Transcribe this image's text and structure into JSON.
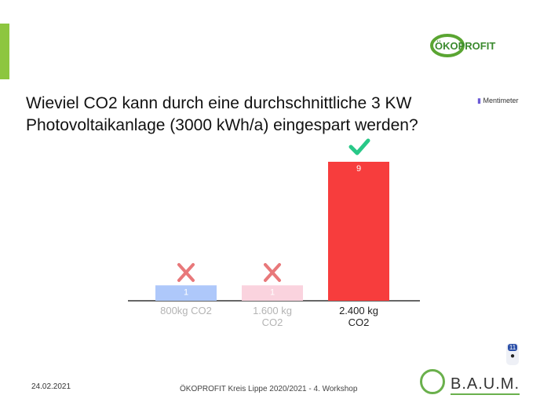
{
  "slide": {
    "logo_top": "ÖKOPROFIT",
    "brand": "Mentimeter",
    "logo_bottom": "B.A.U.M.",
    "badge": "11",
    "date": "24.02.2021",
    "footer": "ÖKOPROFIT Kreis Lippe 2020/2021 - 4. Workshop"
  },
  "chart_data": {
    "type": "bar",
    "title": "Wieviel CO2 kann durch eine durchschnittliche 3 KW Photovoltaikanlage (3000 kWh/a) eingespart werden?",
    "categories": [
      "800kg CO2",
      "1.600 kg CO2",
      "2.400 kg CO2"
    ],
    "values": [
      1,
      1,
      9
    ],
    "colors": [
      "#aec8fa",
      "#fad3de",
      "#f73d3d"
    ],
    "label_colors": [
      "#b4b4b4",
      "#b4b4b4",
      "#222222"
    ]
  }
}
